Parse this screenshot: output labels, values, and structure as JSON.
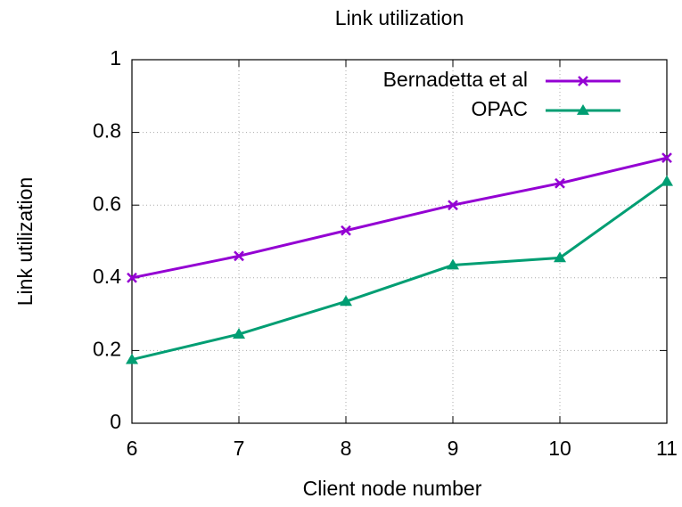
{
  "chart_data": {
    "type": "line",
    "title": "Link utilization",
    "x_label": "Client node number",
    "y_label": "Link utilization",
    "x": [
      6,
      7,
      8,
      9,
      10,
      11
    ],
    "series": [
      {
        "name": "Bernadetta et al",
        "color": "#9400d3",
        "marker": "cross",
        "values": [
          0.4,
          0.46,
          0.53,
          0.6,
          0.66,
          0.73
        ]
      },
      {
        "name": "OPAC",
        "color": "#009e73",
        "marker": "triangle",
        "values": [
          0.175,
          0.245,
          0.335,
          0.435,
          0.455,
          0.665
        ]
      }
    ],
    "xlim": [
      6,
      11
    ],
    "xticks": [
      6,
      7,
      8,
      9,
      10,
      11
    ],
    "ylim": [
      0,
      1
    ],
    "yticks": [
      0,
      0.2,
      0.4,
      0.6,
      0.8,
      1
    ],
    "grid": true,
    "legend": "top-right"
  }
}
